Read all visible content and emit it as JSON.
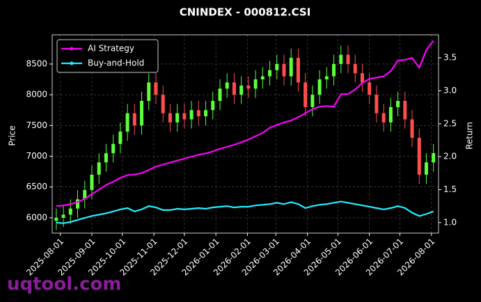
{
  "chart_data": {
    "type": "candlestick_with_returns",
    "title": "CNINDEX - 000812.CSI",
    "ylabel": "Price",
    "y2label": "Return",
    "watermark": "uqtool.com",
    "legend": "upper left",
    "grid": true,
    "up_color": "#5cff3a",
    "down_color": "#ff4d4d",
    "x": [
      "2025-07-28",
      "2025-08-04",
      "2025-08-11",
      "2025-08-18",
      "2025-08-25",
      "2025-09-01",
      "2025-09-08",
      "2025-09-15",
      "2025-09-22",
      "2025-09-29",
      "2025-10-06",
      "2025-10-13",
      "2025-10-20",
      "2025-10-27",
      "2025-11-03",
      "2025-11-10",
      "2025-11-17",
      "2025-11-24",
      "2025-12-01",
      "2025-12-08",
      "2025-12-15",
      "2025-12-22",
      "2025-12-29",
      "2026-01-05",
      "2026-01-12",
      "2026-01-19",
      "2026-01-26",
      "2026-02-02",
      "2026-02-09",
      "2026-02-16",
      "2026-02-23",
      "2026-03-02",
      "2026-03-09",
      "2026-03-16",
      "2026-03-23",
      "2026-03-30",
      "2026-04-06",
      "2026-04-13",
      "2026-04-20",
      "2026-04-27",
      "2026-05-04",
      "2026-05-11",
      "2026-05-18",
      "2026-05-25",
      "2026-06-01",
      "2026-06-08",
      "2026-06-15",
      "2026-06-22",
      "2026-06-29",
      "2026-07-06",
      "2026-07-13",
      "2026-07-20",
      "2026-07-27",
      "2026-08-03"
    ],
    "open": [
      5950,
      6000,
      6050,
      6150,
      6300,
      6450,
      6700,
      6900,
      7050,
      7200,
      7400,
      7700,
      7500,
      7900,
      8200,
      8000,
      7700,
      7550,
      7700,
      7600,
      7750,
      7650,
      7750,
      7900,
      8100,
      8200,
      8000,
      8150,
      8100,
      8250,
      8300,
      8400,
      8500,
      8300,
      8600,
      8200,
      7800,
      8000,
      8250,
      8300,
      8500,
      8650,
      8500,
      8350,
      8200,
      8000,
      7700,
      7550,
      7800,
      7900,
      7600,
      7300,
      6700,
      6900
    ],
    "high": [
      6150,
      6200,
      6300,
      6450,
      6600,
      6850,
      7050,
      7200,
      7350,
      7550,
      7850,
      7850,
      8050,
      8350,
      8350,
      8150,
      7850,
      7850,
      7850,
      7900,
      7900,
      7900,
      8050,
      8250,
      8350,
      8350,
      8300,
      8300,
      8400,
      8450,
      8550,
      8650,
      8650,
      8750,
      8750,
      8350,
      8150,
      8400,
      8450,
      8650,
      8800,
      8800,
      8650,
      8500,
      8350,
      8150,
      7850,
      7950,
      8050,
      8050,
      7750,
      7450,
      7050,
      7200
    ],
    "low": [
      5800,
      5850,
      5900,
      6000,
      6150,
      6300,
      6550,
      6750,
      6900,
      7050,
      7250,
      7350,
      7350,
      7750,
      7850,
      7550,
      7400,
      7400,
      7450,
      7450,
      7500,
      7500,
      7600,
      7750,
      7950,
      7850,
      7850,
      7950,
      7950,
      8100,
      8150,
      8250,
      8150,
      8150,
      8050,
      7650,
      7650,
      7850,
      8100,
      8150,
      8350,
      8350,
      8200,
      8050,
      7850,
      7550,
      7400,
      7400,
      7650,
      7450,
      7150,
      6550,
      6550,
      6750
    ],
    "close": [
      6000,
      6050,
      6150,
      6300,
      6450,
      6700,
      6900,
      7050,
      7200,
      7400,
      7700,
      7500,
      7900,
      8200,
      8000,
      7700,
      7550,
      7700,
      7600,
      7750,
      7650,
      7750,
      7900,
      8100,
      8200,
      8000,
      8150,
      8100,
      8250,
      8300,
      8400,
      8500,
      8300,
      8600,
      8200,
      7800,
      8000,
      8250,
      8300,
      8500,
      8650,
      8500,
      8350,
      8200,
      8000,
      7700,
      7550,
      7800,
      7900,
      7600,
      7300,
      6700,
      6900,
      7050
    ],
    "series": [
      {
        "name": "AI Strategy",
        "color": "#ff00ff",
        "axis": "y2",
        "values": [
          1.25,
          1.26,
          1.28,
          1.31,
          1.36,
          1.43,
          1.5,
          1.57,
          1.62,
          1.68,
          1.72,
          1.73,
          1.75,
          1.8,
          1.85,
          1.88,
          1.91,
          1.94,
          1.97,
          2.0,
          2.03,
          2.05,
          2.08,
          2.12,
          2.15,
          2.18,
          2.22,
          2.26,
          2.31,
          2.36,
          2.44,
          2.48,
          2.52,
          2.55,
          2.6,
          2.66,
          2.72,
          2.76,
          2.77,
          2.76,
          2.95,
          2.95,
          3.02,
          3.12,
          3.18,
          3.2,
          3.22,
          3.3,
          3.46,
          3.47,
          3.5,
          3.35,
          3.62,
          3.76
        ]
      },
      {
        "name": "Buy-and-Hold",
        "color": "#22f0ff",
        "axis": "y2",
        "values": [
          1.0,
          0.99,
          1.01,
          1.04,
          1.07,
          1.1,
          1.12,
          1.14,
          1.17,
          1.2,
          1.22,
          1.17,
          1.2,
          1.25,
          1.23,
          1.19,
          1.19,
          1.21,
          1.2,
          1.21,
          1.22,
          1.21,
          1.23,
          1.24,
          1.25,
          1.23,
          1.24,
          1.24,
          1.26,
          1.27,
          1.28,
          1.3,
          1.28,
          1.31,
          1.28,
          1.22,
          1.25,
          1.27,
          1.28,
          1.3,
          1.32,
          1.3,
          1.28,
          1.26,
          1.24,
          1.22,
          1.2,
          1.22,
          1.25,
          1.22,
          1.15,
          1.1,
          1.13,
          1.17
        ]
      }
    ],
    "xlim": [
      "2025-07-24",
      "2026-08-08"
    ],
    "xticks": [
      "2025-08-01",
      "2025-09-01",
      "2025-10-01",
      "2025-11-01",
      "2025-12-01",
      "2026-01-01",
      "2026-02-01",
      "2026-03-01",
      "2026-04-01",
      "2026-05-01",
      "2026-06-01",
      "2026-07-01",
      "2026-08-01"
    ],
    "ylim": [
      5750,
      8975
    ],
    "yticks": [
      6000,
      6500,
      7000,
      7500,
      8000,
      8500
    ],
    "y2lim": [
      0.84,
      3.85
    ],
    "y2ticks": [
      {
        "value": 1,
        "label": "1.0"
      },
      {
        "value": 1.5,
        "label": "1.5"
      },
      {
        "value": 2,
        "label": "2.0"
      },
      {
        "value": 2.5,
        "label": "2.5"
      },
      {
        "value": 3,
        "label": "3.0"
      },
      {
        "value": 3.5,
        "label": "3.5"
      }
    ]
  }
}
